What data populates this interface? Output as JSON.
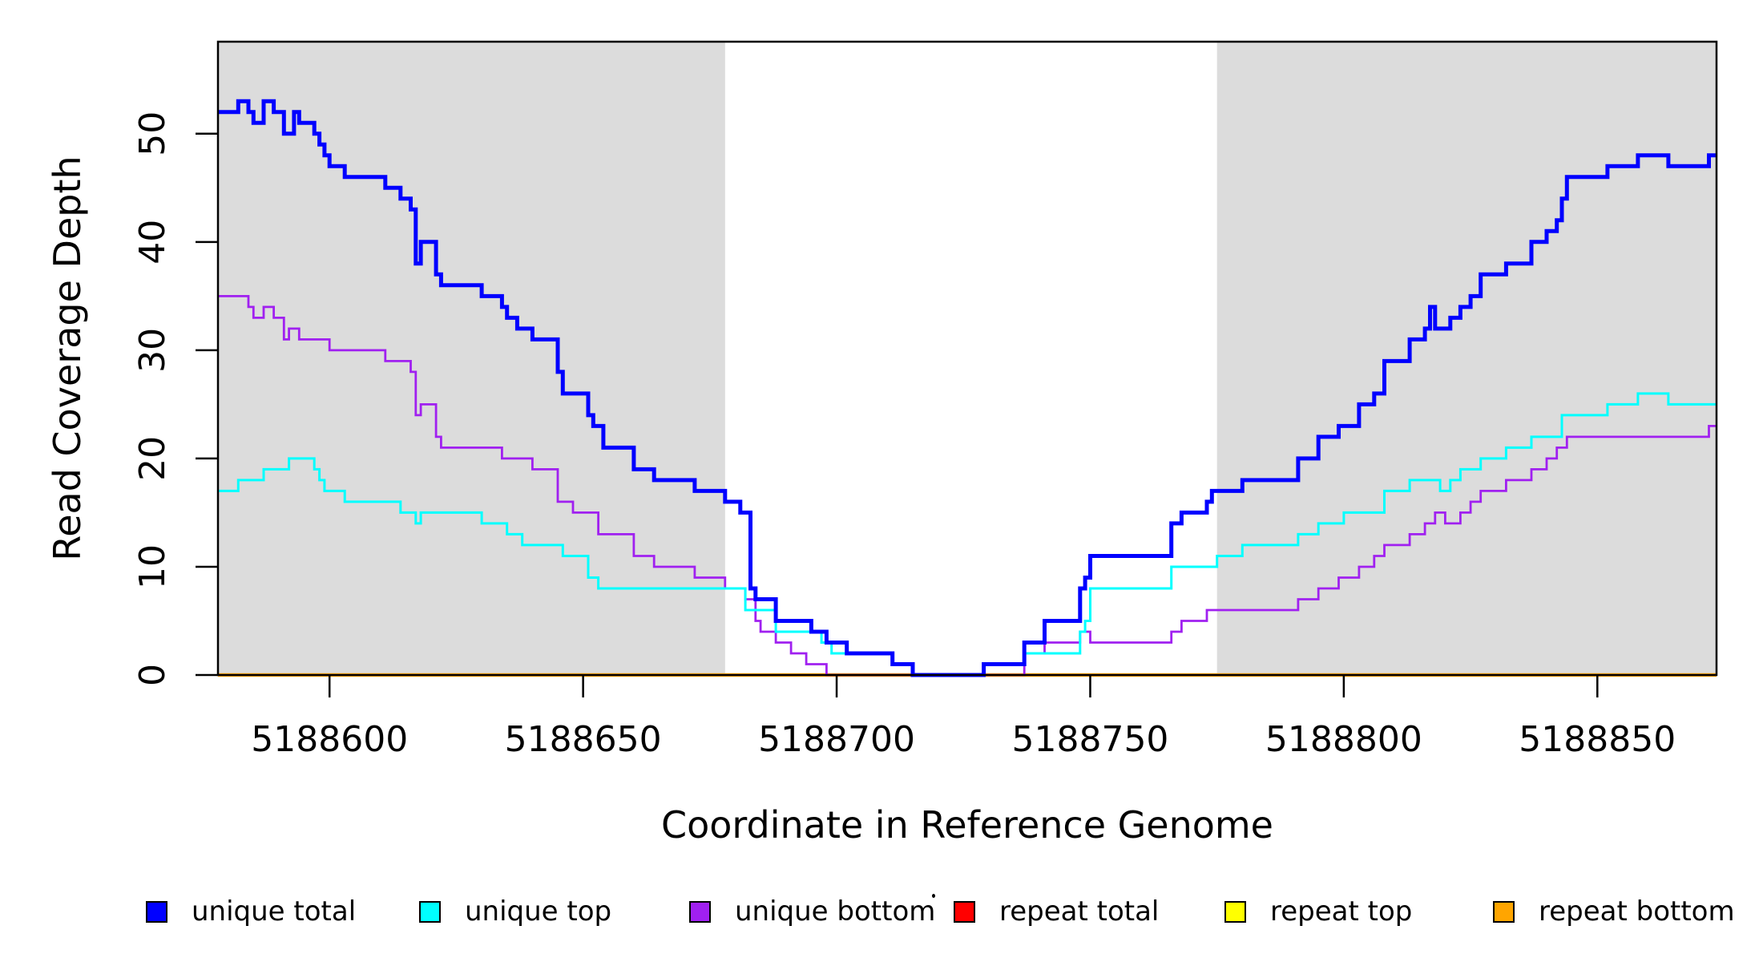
{
  "chart_data": {
    "type": "line",
    "subtype": "step-coverage",
    "title": "",
    "xlabel": "Coordinate in Reference Genome",
    "ylabel": "Read Coverage Depth",
    "xlim": [
      5188578,
      5188873.5
    ],
    "ylim": [
      0,
      58.5
    ],
    "x_ticks": [
      5188600,
      5188650,
      5188700,
      5188750,
      5188800,
      5188850
    ],
    "y_ticks": [
      0,
      10,
      20,
      30,
      40,
      50
    ],
    "grid": false,
    "legend_position": "bottom",
    "shade_color": "#DCDCDC",
    "shaded_regions": [
      [
        5188578,
        5188678
      ],
      [
        5188775,
        5188873.5
      ]
    ],
    "series": [
      {
        "name": "repeat total",
        "color": "#FF0000",
        "line_width": 3,
        "points": [
          [
            5188578,
            0
          ]
        ]
      },
      {
        "name": "repeat top",
        "color": "#FFFF00",
        "line_width": 3,
        "points": [
          [
            5188578,
            0
          ]
        ]
      },
      {
        "name": "repeat bottom",
        "color": "#FFA500",
        "line_width": 4.5,
        "points": [
          [
            5188578,
            0
          ]
        ]
      },
      {
        "name": "unique bottom",
        "color": "#A020F0",
        "line_width": 2.8,
        "points": [
          [
            5188578,
            35
          ],
          [
            5188584,
            34
          ],
          [
            5188585,
            33
          ],
          [
            5188587,
            34
          ],
          [
            5188589,
            33
          ],
          [
            5188591,
            31
          ],
          [
            5188592,
            32
          ],
          [
            5188594,
            31
          ],
          [
            5188600,
            30
          ],
          [
            5188611,
            29
          ],
          [
            5188616,
            28
          ],
          [
            5188617,
            24
          ],
          [
            5188618,
            25
          ],
          [
            5188621,
            22
          ],
          [
            5188622,
            21
          ],
          [
            5188634,
            20
          ],
          [
            5188640,
            19
          ],
          [
            5188645,
            16
          ],
          [
            5188648,
            15
          ],
          [
            5188653,
            13
          ],
          [
            5188660,
            11
          ],
          [
            5188664,
            10
          ],
          [
            5188672,
            9
          ],
          [
            5188678,
            8
          ],
          [
            5188682,
            7
          ],
          [
            5188684,
            5
          ],
          [
            5188685,
            4
          ],
          [
            5188688,
            3
          ],
          [
            5188691,
            2
          ],
          [
            5188694,
            1
          ],
          [
            5188698,
            0
          ],
          [
            5188737,
            2
          ],
          [
            5188741,
            3
          ],
          [
            5188748,
            4
          ],
          [
            5188750,
            3
          ],
          [
            5188766,
            4
          ],
          [
            5188768,
            5
          ],
          [
            5188773,
            6
          ],
          [
            5188791,
            7
          ],
          [
            5188795,
            8
          ],
          [
            5188799,
            9
          ],
          [
            5188803,
            10
          ],
          [
            5188806,
            11
          ],
          [
            5188808,
            12
          ],
          [
            5188813,
            13
          ],
          [
            5188816,
            14
          ],
          [
            5188818,
            15
          ],
          [
            5188820,
            14
          ],
          [
            5188823,
            15
          ],
          [
            5188825,
            16
          ],
          [
            5188827,
            17
          ],
          [
            5188832,
            18
          ],
          [
            5188837,
            19
          ],
          [
            5188840,
            20
          ],
          [
            5188842,
            21
          ],
          [
            5188844,
            22
          ],
          [
            5188872,
            23
          ]
        ]
      },
      {
        "name": "unique top",
        "color": "#00FFFF",
        "line_width": 3,
        "points": [
          [
            5188578,
            17
          ],
          [
            5188582,
            18
          ],
          [
            5188587,
            19
          ],
          [
            5188592,
            20
          ],
          [
            5188597,
            19
          ],
          [
            5188598,
            18
          ],
          [
            5188599,
            17
          ],
          [
            5188603,
            16
          ],
          [
            5188614,
            15
          ],
          [
            5188617,
            14
          ],
          [
            5188618,
            15
          ],
          [
            5188630,
            14
          ],
          [
            5188635,
            13
          ],
          [
            5188638,
            12
          ],
          [
            5188646,
            11
          ],
          [
            5188651,
            9
          ],
          [
            5188653,
            8
          ],
          [
            5188682,
            6
          ],
          [
            5188688,
            4
          ],
          [
            5188697,
            3
          ],
          [
            5188699,
            2
          ],
          [
            5188711,
            1
          ],
          [
            5188715,
            0
          ],
          [
            5188729,
            1
          ],
          [
            5188737,
            2
          ],
          [
            5188748,
            4
          ],
          [
            5188749,
            5
          ],
          [
            5188750,
            8
          ],
          [
            5188766,
            10
          ],
          [
            5188775,
            11
          ],
          [
            5188780,
            12
          ],
          [
            5188791,
            13
          ],
          [
            5188795,
            14
          ],
          [
            5188800,
            15
          ],
          [
            5188808,
            17
          ],
          [
            5188813,
            18
          ],
          [
            5188819,
            17
          ],
          [
            5188821,
            18
          ],
          [
            5188823,
            19
          ],
          [
            5188827,
            20
          ],
          [
            5188832,
            21
          ],
          [
            5188837,
            22
          ],
          [
            5188843,
            24
          ],
          [
            5188852,
            25
          ],
          [
            5188858,
            26
          ],
          [
            5188864,
            25
          ]
        ]
      },
      {
        "name": "unique total",
        "color": "#0000FF",
        "line_width": 5,
        "points": [
          [
            5188578,
            52
          ],
          [
            5188582,
            53
          ],
          [
            5188584,
            52
          ],
          [
            5188585,
            51
          ],
          [
            5188587,
            53
          ],
          [
            5188589,
            52
          ],
          [
            5188591,
            50
          ],
          [
            5188593,
            52
          ],
          [
            5188594,
            51
          ],
          [
            5188597,
            50
          ],
          [
            5188598,
            49
          ],
          [
            5188599,
            48
          ],
          [
            5188600,
            47
          ],
          [
            5188603,
            46
          ],
          [
            5188611,
            45
          ],
          [
            5188614,
            44
          ],
          [
            5188616,
            43
          ],
          [
            5188617,
            38
          ],
          [
            5188618,
            40
          ],
          [
            5188621,
            37
          ],
          [
            5188622,
            36
          ],
          [
            5188630,
            35
          ],
          [
            5188634,
            34
          ],
          [
            5188635,
            33
          ],
          [
            5188637,
            32
          ],
          [
            5188640,
            31
          ],
          [
            5188645,
            28
          ],
          [
            5188646,
            26
          ],
          [
            5188651,
            24
          ],
          [
            5188652,
            23
          ],
          [
            5188654,
            21
          ],
          [
            5188660,
            19
          ],
          [
            5188664,
            18
          ],
          [
            5188672,
            17
          ],
          [
            5188678,
            16
          ],
          [
            5188681,
            15
          ],
          [
            5188683,
            8
          ],
          [
            5188684,
            7
          ],
          [
            5188688,
            5
          ],
          [
            5188695,
            4
          ],
          [
            5188698,
            3
          ],
          [
            5188702,
            2
          ],
          [
            5188711,
            1
          ],
          [
            5188715,
            0
          ],
          [
            5188729,
            1
          ],
          [
            5188737,
            3
          ],
          [
            5188741,
            5
          ],
          [
            5188748,
            8
          ],
          [
            5188749,
            9
          ],
          [
            5188750,
            11
          ],
          [
            5188766,
            14
          ],
          [
            5188768,
            15
          ],
          [
            5188773,
            16
          ],
          [
            5188774,
            17
          ],
          [
            5188780,
            18
          ],
          [
            5188791,
            20
          ],
          [
            5188795,
            22
          ],
          [
            5188799,
            23
          ],
          [
            5188803,
            25
          ],
          [
            5188806,
            26
          ],
          [
            5188808,
            29
          ],
          [
            5188813,
            31
          ],
          [
            5188816,
            32
          ],
          [
            5188817,
            34
          ],
          [
            5188818,
            32
          ],
          [
            5188821,
            33
          ],
          [
            5188823,
            34
          ],
          [
            5188825,
            35
          ],
          [
            5188827,
            37
          ],
          [
            5188832,
            38
          ],
          [
            5188837,
            40
          ],
          [
            5188840,
            41
          ],
          [
            5188842,
            42
          ],
          [
            5188843,
            44
          ],
          [
            5188844,
            46
          ],
          [
            5188852,
            47
          ],
          [
            5188858,
            48
          ],
          [
            5188864,
            47
          ],
          [
            5188872,
            48
          ]
        ]
      }
    ]
  },
  "legend": {
    "items": [
      {
        "label": "unique total",
        "color": "#0000FF"
      },
      {
        "label": "unique top",
        "color": "#00FFFF"
      },
      {
        "label": "unique bottom",
        "color": "#A020F0"
      },
      {
        "label": "repeat total",
        "color": "#FF0000"
      },
      {
        "label": "repeat top",
        "color": "#FFFF00"
      },
      {
        "label": "repeat bottom",
        "color": "#FFA500"
      }
    ],
    "stray_mark": "."
  }
}
